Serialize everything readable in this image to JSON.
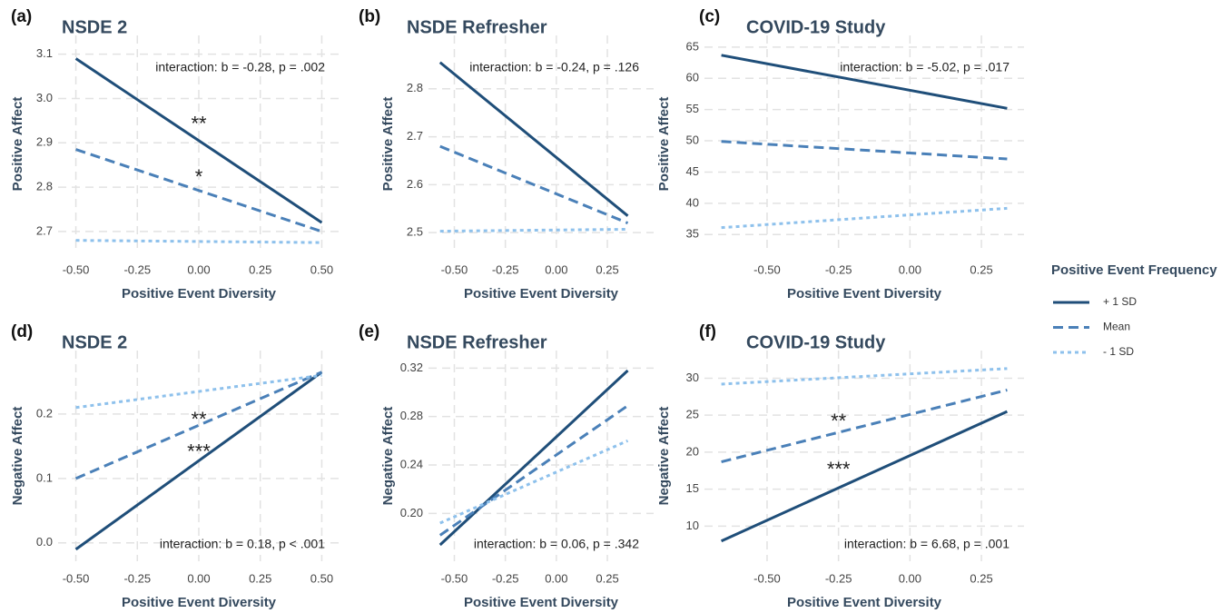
{
  "chart_data": [
    {
      "type": "line",
      "panel_label": "(a)",
      "title": "NSDE 2",
      "x_label": "Positive Event Diversity",
      "y_label": "Positive Affect",
      "x": [
        -0.5,
        0.5
      ],
      "series": [
        {
          "values": [
            3.09,
            2.72
          ]
        },
        {
          "values": [
            2.885,
            2.7
          ]
        },
        {
          "values": [
            2.68,
            2.675
          ]
        }
      ],
      "xlim": [
        -0.55,
        0.55
      ],
      "xticks": [
        {
          "value": -0.5,
          "label": "-0.50"
        },
        {
          "value": -0.25,
          "label": "-0.25"
        },
        {
          "value": 0,
          "label": "0.00"
        },
        {
          "value": 0.25,
          "label": "0.25"
        },
        {
          "value": 0.5,
          "label": "0.50"
        }
      ],
      "ylim": [
        2.665,
        3.13
      ],
      "yticks": [
        2.7,
        2.8,
        2.9,
        {
          "value": 3,
          "label": "3.0"
        },
        3.1
      ],
      "grid": true,
      "annotation": "interaction: b = -0.28, p = .002",
      "stars": [
        {
          "text": "**",
          "x": 0,
          "y": 2.94
        },
        {
          "text": "*",
          "x": 0,
          "y": 2.82
        }
      ]
    },
    {
      "type": "line",
      "panel_label": "(b)",
      "title": "NSDE Refresher",
      "x_label": "Positive Event Diversity",
      "y_label": "Positive Affect",
      "x": [
        -0.57,
        0.35
      ],
      "series": [
        {
          "values": [
            2.855,
            2.535
          ]
        },
        {
          "values": [
            2.68,
            2.52
          ]
        },
        {
          "values": [
            2.503,
            2.507
          ]
        }
      ],
      "xlim": [
        -0.6,
        0.45
      ],
      "xticks": [
        {
          "value": -0.5,
          "label": "-0.50"
        },
        {
          "value": -0.25,
          "label": "-0.25"
        },
        {
          "value": 0,
          "label": "0.00"
        },
        {
          "value": 0.25,
          "label": "0.25"
        }
      ],
      "ylim": [
        2.47,
        2.9
      ],
      "yticks": [
        2.5,
        2.6,
        2.7,
        2.8
      ],
      "grid": true,
      "annotation": "interaction: b = -0.24, p = .126",
      "stars": []
    },
    {
      "type": "line",
      "panel_label": "(c)",
      "title": "COVID-19 Study",
      "x_label": "Positive Event Diversity",
      "y_label": "Positive Affect",
      "x": [
        -0.66,
        0.34
      ],
      "series": [
        {
          "values": [
            63.7,
            55.2
          ]
        },
        {
          "values": [
            49.9,
            47.1
          ]
        },
        {
          "values": [
            36.1,
            39.2
          ]
        }
      ],
      "xlim": [
        -0.7,
        0.38
      ],
      "xticks": [
        {
          "value": -0.5,
          "label": "-0.50"
        },
        {
          "value": -0.25,
          "label": "-0.25"
        },
        {
          "value": 0,
          "label": "0.00"
        },
        {
          "value": 0.25,
          "label": "0.25"
        }
      ],
      "ylim": [
        33,
        66
      ],
      "yticks": [
        35,
        40,
        45,
        50,
        55,
        60,
        65
      ],
      "grid": true,
      "annotation": "interaction: b = -5.02, p = .017",
      "stars": []
    },
    {
      "type": "line",
      "panel_label": "(d)",
      "title": "NSDE 2",
      "x_label": "Positive Event Diversity",
      "y_label": "Negative Affect",
      "x": [
        -0.5,
        0.5
      ],
      "series": [
        {
          "values": [
            -0.01,
            0.265
          ]
        },
        {
          "values": [
            0.1,
            0.265
          ]
        },
        {
          "values": [
            0.21,
            0.26
          ]
        }
      ],
      "xlim": [
        -0.55,
        0.55
      ],
      "xticks": [
        {
          "value": -0.5,
          "label": "-0.50"
        },
        {
          "value": -0.25,
          "label": "-0.25"
        },
        {
          "value": 0,
          "label": "0.00"
        },
        {
          "value": 0.25,
          "label": "0.25"
        },
        {
          "value": 0.5,
          "label": "0.50"
        }
      ],
      "ylim": [
        -0.02,
        0.29
      ],
      "yticks": [
        {
          "value": 0,
          "label": "0.0"
        },
        0.1,
        0.2
      ],
      "grid": true,
      "annotation": "interaction: b = 0.18, p < .001",
      "stars": [
        {
          "text": "**",
          "x": 0,
          "y": 0.19
        },
        {
          "text": "***",
          "x": 0,
          "y": 0.14
        }
      ]
    },
    {
      "type": "line",
      "panel_label": "(e)",
      "title": "NSDE Refresher",
      "x_label": "Positive Event Diversity",
      "y_label": "Negative Affect",
      "x": [
        -0.57,
        0.35
      ],
      "series": [
        {
          "values": [
            0.174,
            0.318
          ]
        },
        {
          "values": [
            0.182,
            0.289
          ]
        },
        {
          "values": [
            0.192,
            0.26
          ]
        }
      ],
      "xlim": [
        -0.6,
        0.45
      ],
      "xticks": [
        {
          "value": -0.5,
          "label": "-0.50"
        },
        {
          "value": -0.25,
          "label": "-0.25"
        },
        {
          "value": 0,
          "label": "0.00"
        },
        {
          "value": 0.25,
          "label": "0.25"
        }
      ],
      "ylim": [
        0.165,
        0.33
      ],
      "yticks": [
        {
          "value": 0.2,
          "label": "0.20"
        },
        {
          "value": 0.24,
          "label": "0.24"
        },
        {
          "value": 0.28,
          "label": "0.28"
        },
        {
          "value": 0.32,
          "label": "0.32"
        }
      ],
      "grid": true,
      "annotation": "interaction: b = 0.06, p = .342",
      "stars": []
    },
    {
      "type": "line",
      "panel_label": "(f)",
      "title": "COVID-19 Study",
      "x_label": "Positive Event Diversity",
      "y_label": "Negative Affect",
      "x": [
        -0.66,
        0.34
      ],
      "series": [
        {
          "values": [
            8.0,
            25.5
          ]
        },
        {
          "values": [
            18.7,
            28.4
          ]
        },
        {
          "values": [
            29.2,
            31.3
          ]
        }
      ],
      "xlim": [
        -0.7,
        0.38
      ],
      "xticks": [
        {
          "value": -0.5,
          "label": "-0.50"
        },
        {
          "value": -0.25,
          "label": "-0.25"
        },
        {
          "value": 0,
          "label": "0.00"
        },
        {
          "value": 0.25,
          "label": "0.25"
        }
      ],
      "ylim": [
        6,
        33
      ],
      "yticks": [
        10,
        15,
        20,
        25,
        30
      ],
      "grid": true,
      "annotation": "interaction: b = 6.68, p = .001",
      "stars": [
        {
          "text": "**",
          "x": -0.25,
          "y": 24
        },
        {
          "text": "***",
          "x": -0.25,
          "y": 17.5
        }
      ]
    }
  ],
  "legend": {
    "title": "Positive Event Frequency",
    "items": [
      {
        "name": "+ 1 SD",
        "color": "#1f4e79",
        "dash": "solid"
      },
      {
        "name": "Mean",
        "color": "#4a80b8",
        "dash": "long"
      },
      {
        "name": "- 1 SD",
        "color": "#8ec1ec",
        "dash": "short"
      }
    ]
  }
}
